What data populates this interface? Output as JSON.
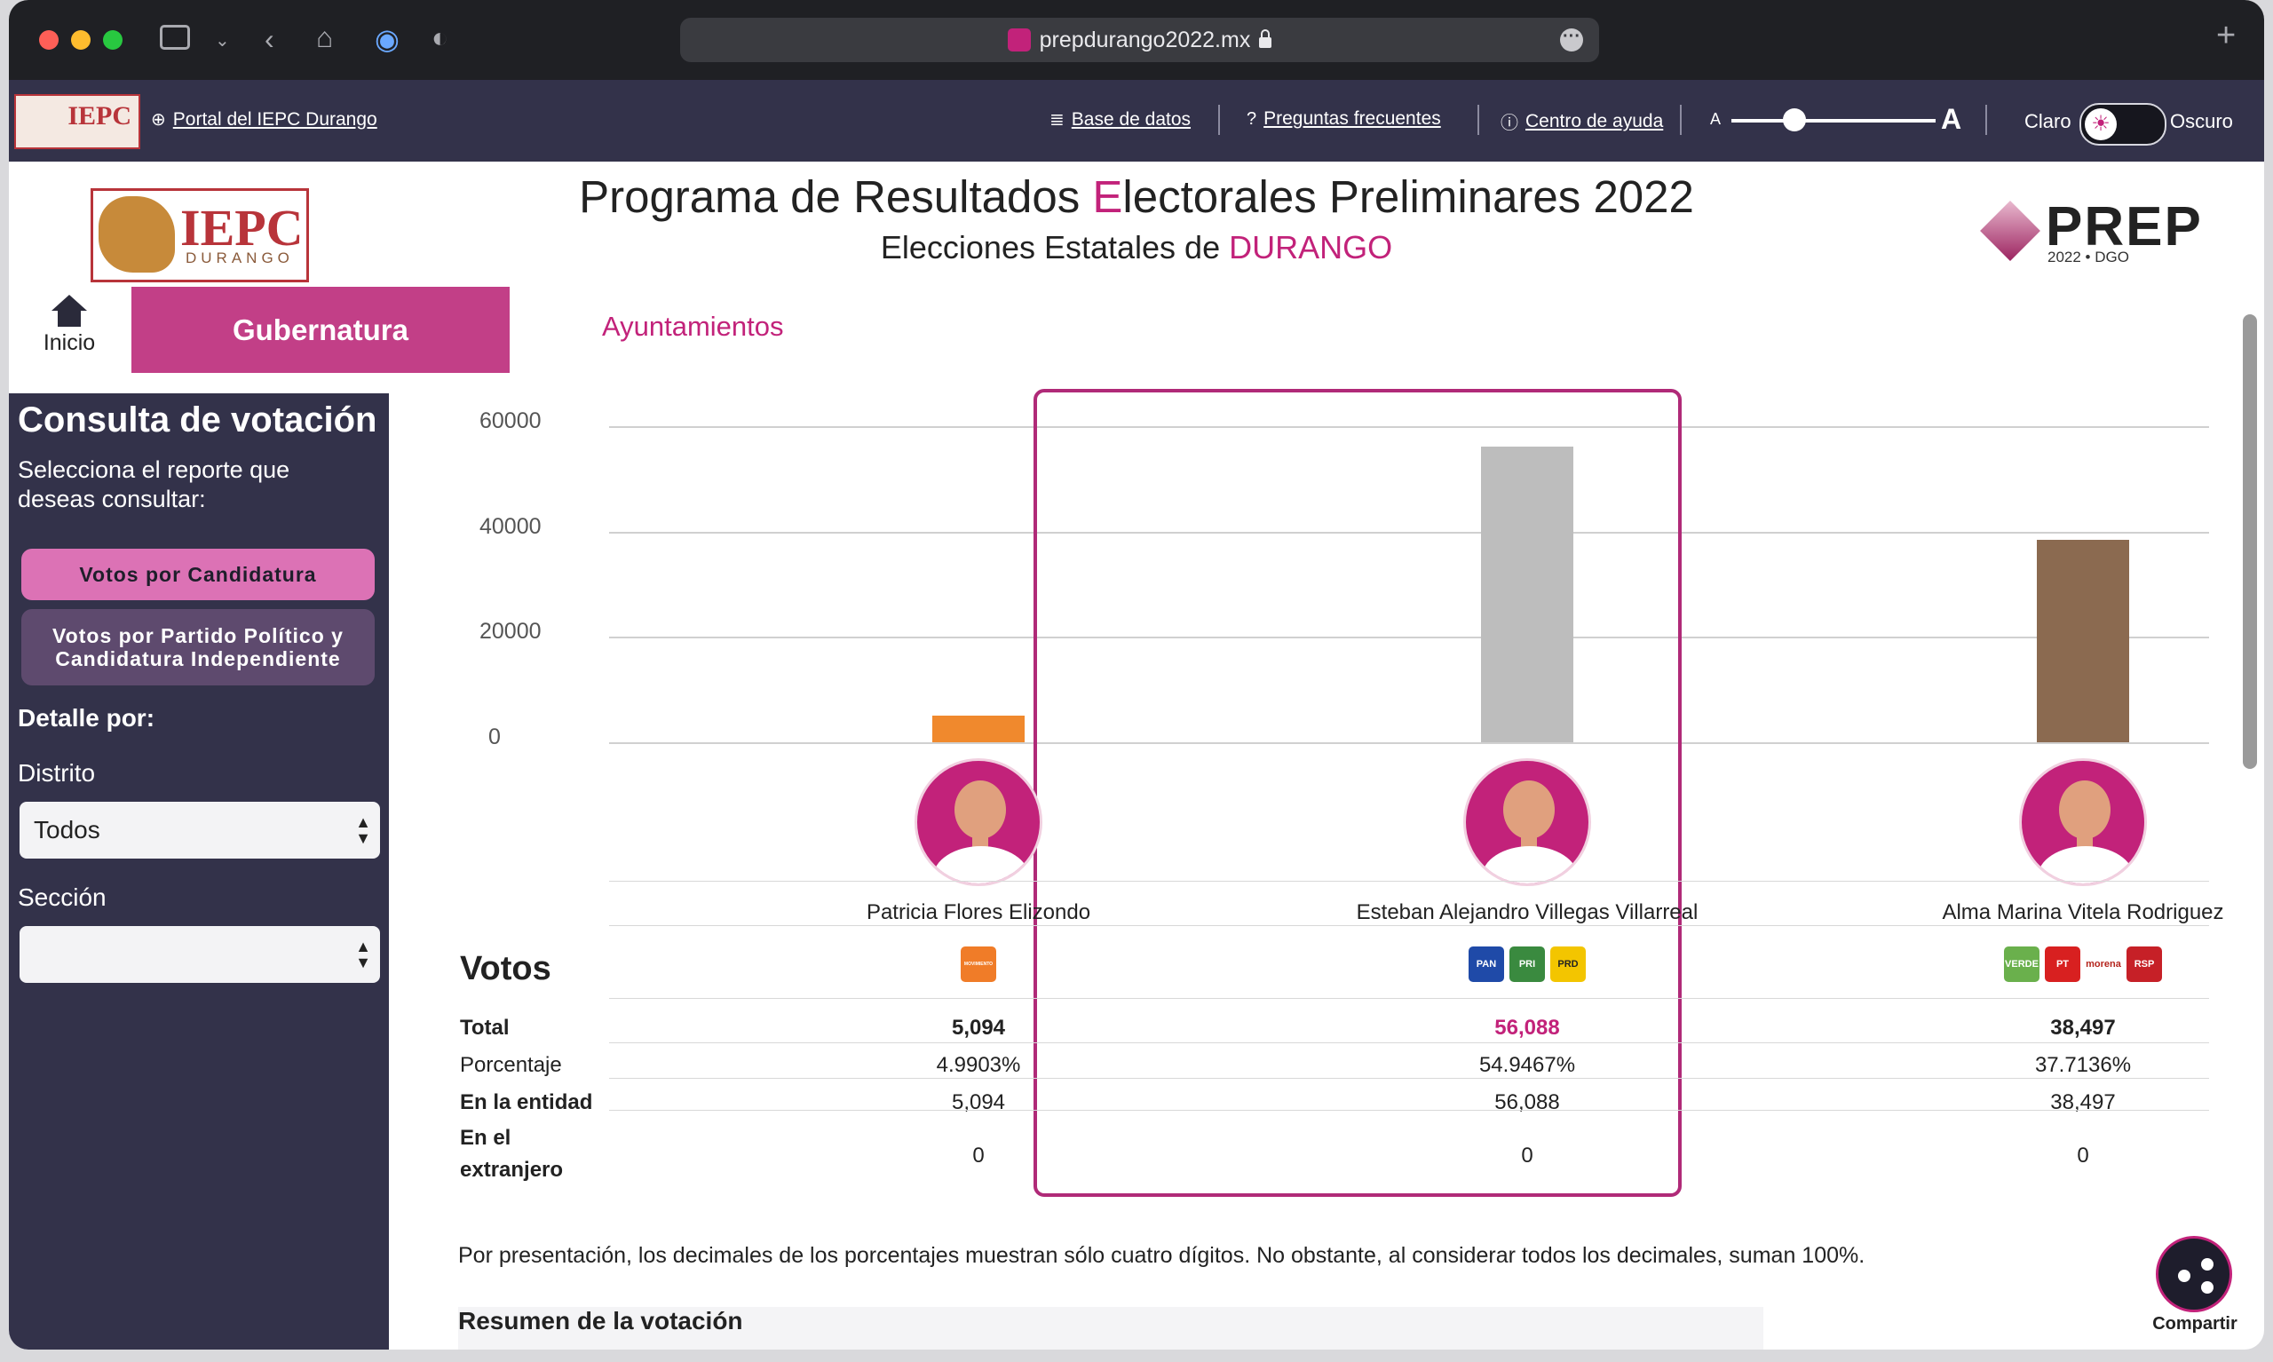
{
  "browser": {
    "url": "prepdurango2022.mx"
  },
  "topbar": {
    "portal_link": "Portal del IEPC Durango",
    "logo_text": "IEPC",
    "db_link": "Base de datos",
    "faq_link": "Preguntas frecuentes",
    "help_link": "Centro de ayuda",
    "font_small": "A",
    "font_large": "A",
    "theme_light": "Claro",
    "theme_dark": "Oscuro"
  },
  "header": {
    "logo_text": "IEPC",
    "logo_sub": "DURANGO",
    "title_pre": "Programa de Resultados ",
    "title_accent": "E",
    "title_post": "lectorales Preliminares 2022",
    "subtitle_pre": "Elecciones Estatales de ",
    "subtitle_accent": "DURANGO",
    "prep_logo": "PREP",
    "prep_year": "2022 • DGO"
  },
  "tabs": {
    "home": "Inicio",
    "gubernatura": "Gubernatura",
    "ayuntamientos": "Ayuntamientos"
  },
  "sidebar": {
    "heading": "Consulta de votación",
    "prompt": "Selecciona el reporte que deseas consultar:",
    "btn_candidatura": "Votos por Candidatura",
    "btn_partido": "Votos por Partido Político y Candidatura Independiente",
    "detalle": "Detalle por:",
    "distrito_label": "Distrito",
    "distrito_value": "Todos",
    "seccion_label": "Sección",
    "seccion_value": ""
  },
  "chart_data": {
    "type": "bar",
    "categories": [
      "Patricia Flores Elizondo",
      "Esteban Alejandro Villegas Villarreal",
      "Alma Marina Vitela Rodriguez"
    ],
    "values": [
      5094,
      56088,
      38497
    ],
    "colors": [
      "#f0892d",
      "#bdbdbd",
      "#8b6a50"
    ],
    "y_ticks": [
      "60000",
      "40000",
      "20000",
      "0"
    ],
    "ylim": [
      0,
      60000
    ],
    "grid": true
  },
  "results": {
    "votos_heading": "Votos",
    "row_labels": {
      "total": "Total",
      "porcentaje": "Porcentaje",
      "entidad": "En la entidad",
      "extranjero": "En el extranjero"
    },
    "candidates": [
      {
        "name": "Patricia Flores Elizondo",
        "total": "5,094",
        "porcentaje": "4.9903%",
        "entidad": "5,094",
        "extranjero": "0",
        "parties": [
          "MC"
        ]
      },
      {
        "name": "Esteban Alejandro Villegas Villarreal",
        "total": "56,088",
        "porcentaje": "54.9467%",
        "entidad": "56,088",
        "extranjero": "0",
        "parties": [
          "PAN",
          "PRI",
          "PRD"
        ]
      },
      {
        "name": "Alma Marina Vitela Rodriguez",
        "total": "38,497",
        "porcentaje": "37.7136%",
        "entidad": "38,497",
        "extranjero": "0",
        "parties": [
          "VERDE",
          "PT",
          "morena",
          "RSP"
        ]
      }
    ],
    "party_labels": {
      "MC": "MOVIMIENTO CIUDADANO",
      "PAN": "PAN",
      "PRI": "PRI",
      "PRD": "PRD",
      "VERDE": "VERDE",
      "PT": "PT",
      "morena": "morena",
      "RSP": "RSP"
    }
  },
  "note": "Por presentación, los decimales de los porcentajes muestran sólo cuatro dígitos. No obstante, al considerar todos los decimales, suman 100%.",
  "resumen": "Resumen de la votación",
  "share_label": "Compartir"
}
